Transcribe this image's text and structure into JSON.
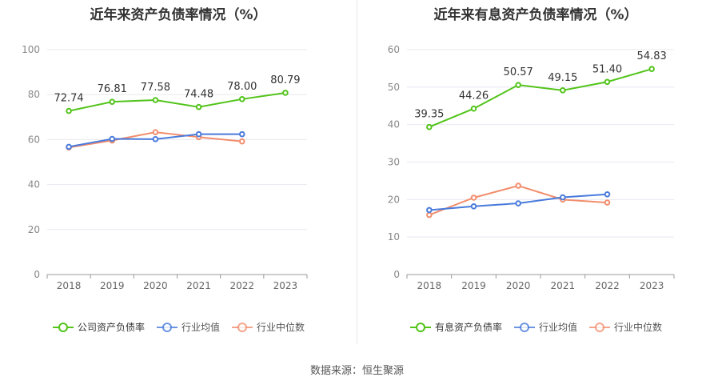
{
  "footer": {
    "source": "数据来源：恒生聚源"
  },
  "chart_data": [
    {
      "type": "line",
      "title": "近年来资产负债率情况（%）",
      "categories": [
        "2018",
        "2019",
        "2020",
        "2021",
        "2022",
        "2023"
      ],
      "ylim": [
        0,
        100
      ],
      "yticks": [
        0,
        20,
        40,
        60,
        80,
        100
      ],
      "grid": true,
      "legend_position": "bottom",
      "series": [
        {
          "name": "公司资产负债率",
          "color": "#52c41a",
          "values": [
            72.74,
            76.81,
            77.58,
            74.48,
            78.0,
            80.79
          ],
          "labels": [
            "72.74",
            "76.81",
            "77.58",
            "74.48",
            "78.00",
            "80.79"
          ]
        },
        {
          "name": "行业均值",
          "color": "#4a7bdc",
          "values": [
            56.8,
            60.3,
            60.2,
            62.4,
            62.4,
            null
          ]
        },
        {
          "name": "行业中位数",
          "color": "#f28e6e",
          "values": [
            56.5,
            59.6,
            63.3,
            61.1,
            59.2,
            null
          ]
        }
      ]
    },
    {
      "type": "line",
      "title": "近年来有息资产负债率情况（%）",
      "categories": [
        "2018",
        "2019",
        "2020",
        "2021",
        "2022",
        "2023"
      ],
      "ylim": [
        0,
        60
      ],
      "yticks": [
        0,
        10,
        20,
        30,
        40,
        50,
        60
      ],
      "grid": true,
      "legend_position": "bottom",
      "series": [
        {
          "name": "有息资产负债率",
          "color": "#52c41a",
          "values": [
            39.35,
            44.26,
            50.57,
            49.15,
            51.4,
            54.83
          ],
          "labels": [
            "39.35",
            "44.26",
            "50.57",
            "49.15",
            "51.40",
            "54.83"
          ]
        },
        {
          "name": "行业均值",
          "color": "#4a7bdc",
          "values": [
            17.2,
            18.2,
            19.0,
            20.6,
            21.4,
            null
          ]
        },
        {
          "name": "行业中位数",
          "color": "#f28e6e",
          "values": [
            15.9,
            20.5,
            23.7,
            20.0,
            19.2,
            null
          ]
        }
      ]
    }
  ]
}
